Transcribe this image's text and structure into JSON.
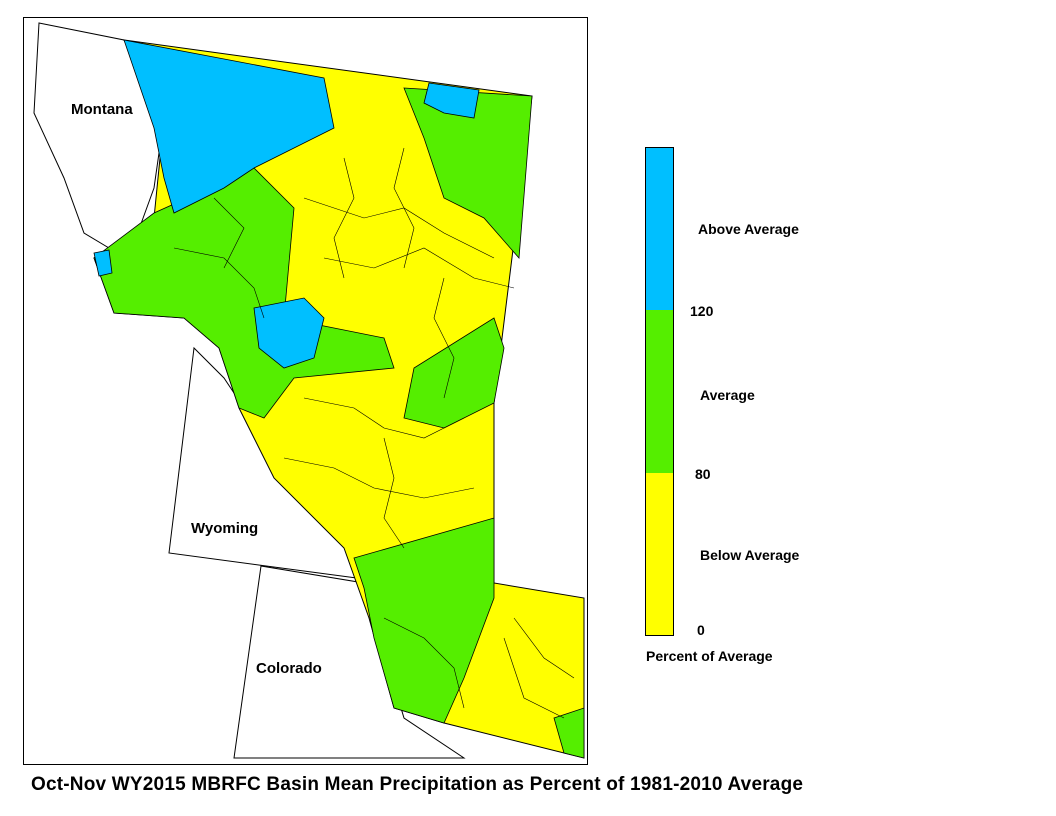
{
  "map": {
    "state_labels": {
      "montana": "Montana",
      "wyoming": "Wyoming",
      "colorado": "Colorado"
    },
    "colors": {
      "above_average": "#00bfff",
      "average": "#55ee00",
      "below_average": "#ffff00",
      "boundary": "#000000"
    }
  },
  "legend": {
    "labels": {
      "above": "Above Average",
      "average": "Average",
      "below": "Below Average"
    },
    "ticks": {
      "t120": "120",
      "t80": "80",
      "t0": "0"
    },
    "title": "Percent of Average",
    "breaks": [
      0,
      80,
      120,
      160
    ]
  },
  "caption": "Oct-Nov WY2015 MBRFC Basin Mean Precipitation as Percent of 1981-2010 Average"
}
